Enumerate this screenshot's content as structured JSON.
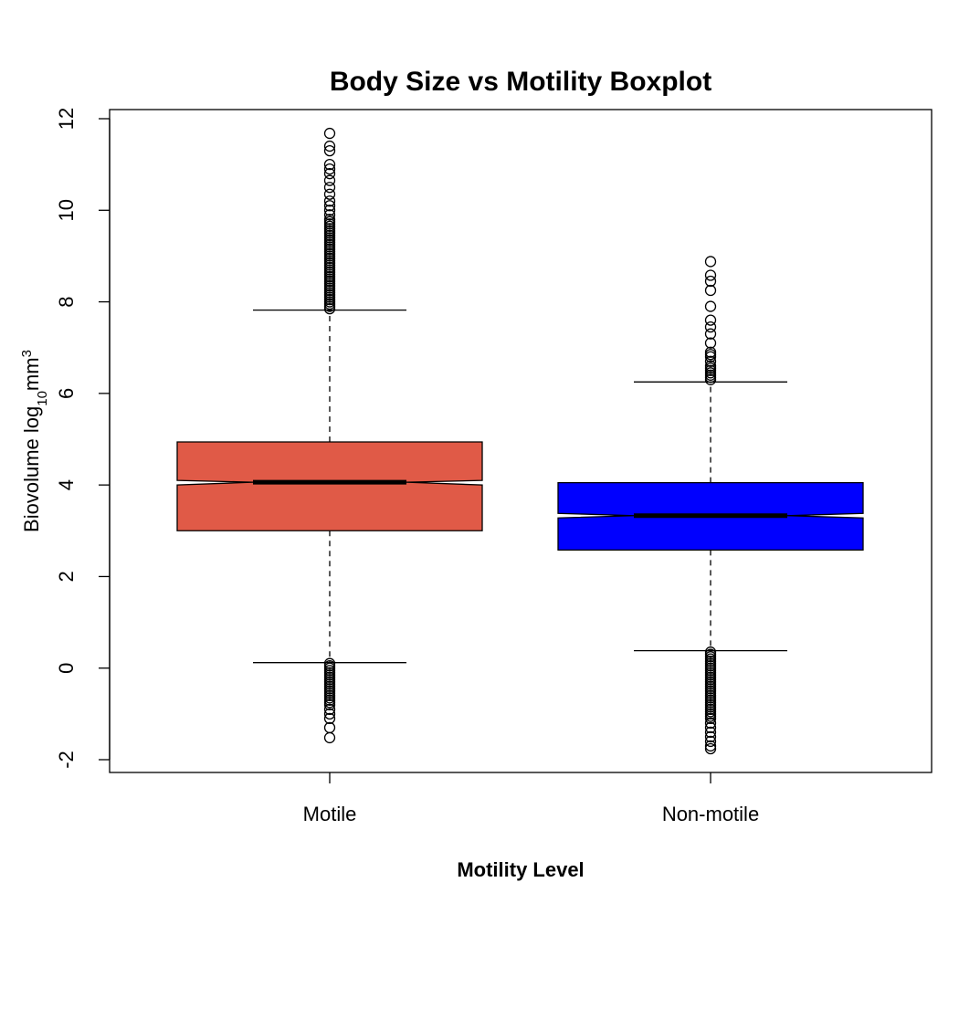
{
  "chart_data": {
    "type": "boxplot",
    "title": "Body Size vs Motility Boxplot",
    "xlabel": "Motility Level",
    "ylabel": {
      "prefix": "Biovolume log",
      "subscript": "10",
      "unit": "mm",
      "superscript": "3"
    },
    "ylim": [
      -2.3,
      12.3
    ],
    "yticks": [
      -2,
      0,
      2,
      4,
      6,
      8,
      10,
      12
    ],
    "notched": true,
    "grid": false,
    "categories": [
      "Motile",
      "Non-motile"
    ],
    "series": [
      {
        "category": "Motile",
        "color": "#e05a47",
        "whisker_low": 0.12,
        "q1": 3.0,
        "median": 4.06,
        "q3": 4.94,
        "whisker_high": 7.82,
        "notch_low": 4.0,
        "notch_high": 4.1,
        "outliers": [
          7.85,
          7.9,
          7.95,
          8.0,
          8.05,
          8.1,
          8.15,
          8.2,
          8.25,
          8.3,
          8.35,
          8.4,
          8.45,
          8.5,
          8.55,
          8.6,
          8.65,
          8.7,
          8.75,
          8.8,
          8.85,
          8.9,
          8.95,
          9.0,
          9.05,
          9.1,
          9.15,
          9.2,
          9.25,
          9.3,
          9.35,
          9.4,
          9.45,
          9.5,
          9.55,
          9.6,
          9.65,
          9.7,
          9.75,
          9.8,
          9.9,
          10.0,
          10.1,
          10.2,
          10.35,
          10.5,
          10.65,
          10.8,
          10.9,
          11.0,
          11.3,
          11.4,
          11.68,
          0.1,
          0.05,
          0.0,
          -0.05,
          -0.1,
          -0.15,
          -0.2,
          -0.25,
          -0.3,
          -0.35,
          -0.4,
          -0.45,
          -0.5,
          -0.55,
          -0.6,
          -0.65,
          -0.7,
          -0.75,
          -0.8,
          -0.9,
          -1.0,
          -1.1,
          -1.3,
          -1.52
        ]
      },
      {
        "category": "Non-motile",
        "color": "#0000ff",
        "whisker_low": 0.38,
        "q1": 2.58,
        "median": 3.33,
        "q3": 4.05,
        "whisker_high": 6.25,
        "notch_low": 3.28,
        "notch_high": 3.38,
        "outliers": [
          6.3,
          6.35,
          6.4,
          6.45,
          6.5,
          6.55,
          6.6,
          6.7,
          6.8,
          6.85,
          6.9,
          7.1,
          7.3,
          7.45,
          7.6,
          7.9,
          8.25,
          8.45,
          8.58,
          8.88,
          0.35,
          0.3,
          0.25,
          0.2,
          0.15,
          0.1,
          0.05,
          0.0,
          -0.05,
          -0.1,
          -0.15,
          -0.2,
          -0.25,
          -0.3,
          -0.35,
          -0.4,
          -0.45,
          -0.5,
          -0.55,
          -0.6,
          -0.65,
          -0.7,
          -0.75,
          -0.8,
          -0.85,
          -0.9,
          -0.95,
          -1.0,
          -1.05,
          -1.1,
          -1.2,
          -1.3,
          -1.4,
          -1.5,
          -1.6,
          -1.7,
          -1.76
        ]
      }
    ]
  }
}
